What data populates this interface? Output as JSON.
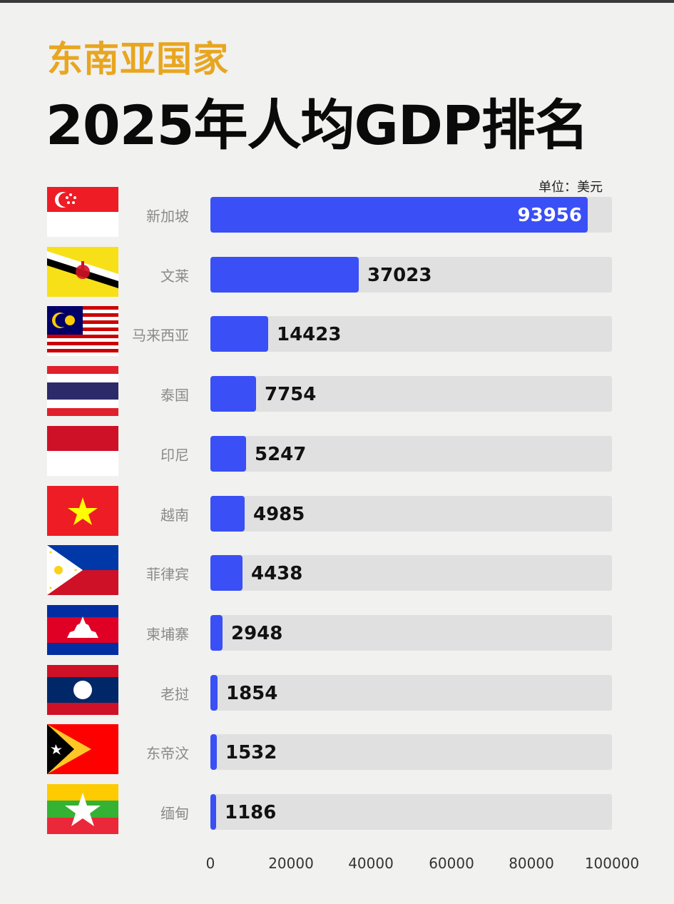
{
  "header": {
    "subtitle": "东南亚国家",
    "title": "2025年人均GDP排名",
    "unit": "单位：美元"
  },
  "colors": {
    "bar": "#3a4ff5",
    "track": "#e0e0e0",
    "subtitle": "#e8a620",
    "background": "#f1f1f0"
  },
  "rows": [
    {
      "country": "新加坡",
      "value": "93956",
      "flag": "singapore-flag"
    },
    {
      "country": "文莱",
      "value": "37023",
      "flag": "brunei-flag"
    },
    {
      "country": "马来西亚",
      "value": "14423",
      "flag": "malaysia-flag"
    },
    {
      "country": "泰国",
      "value": "7754",
      "flag": "thailand-flag"
    },
    {
      "country": "印尼",
      "value": "5247",
      "flag": "indonesia-flag"
    },
    {
      "country": "越南",
      "value": "4985",
      "flag": "vietnam-flag"
    },
    {
      "country": "菲律宾",
      "value": "4438",
      "flag": "philippines-flag"
    },
    {
      "country": "柬埔寨",
      "value": "2948",
      "flag": "cambodia-flag"
    },
    {
      "country": "老挝",
      "value": "1854",
      "flag": "laos-flag"
    },
    {
      "country": "东帝汶",
      "value": "1532",
      "flag": "timor-leste-flag"
    },
    {
      "country": "缅甸",
      "value": "1186",
      "flag": "myanmar-flag"
    }
  ],
  "axis": {
    "ticks": [
      "0",
      "20000",
      "40000",
      "60000",
      "80000",
      "100000"
    ]
  },
  "chart_data": {
    "type": "bar",
    "orientation": "horizontal",
    "title": "2025年人均GDP排名",
    "subtitle": "东南亚国家",
    "unit": "单位：美元",
    "categories": [
      "新加坡",
      "文莱",
      "马来西亚",
      "泰国",
      "印尼",
      "越南",
      "菲律宾",
      "柬埔寨",
      "老挝",
      "东帝汶",
      "缅甸"
    ],
    "values": [
      93956,
      37023,
      14423,
      7754,
      5247,
      4985,
      4438,
      2948,
      1854,
      1532,
      1186
    ],
    "xlabel": "",
    "ylabel": "",
    "xlim": [
      0,
      100000
    ],
    "xticks": [
      0,
      20000,
      40000,
      60000,
      80000,
      100000
    ],
    "grid": false,
    "legend": null,
    "data_labels": true
  }
}
